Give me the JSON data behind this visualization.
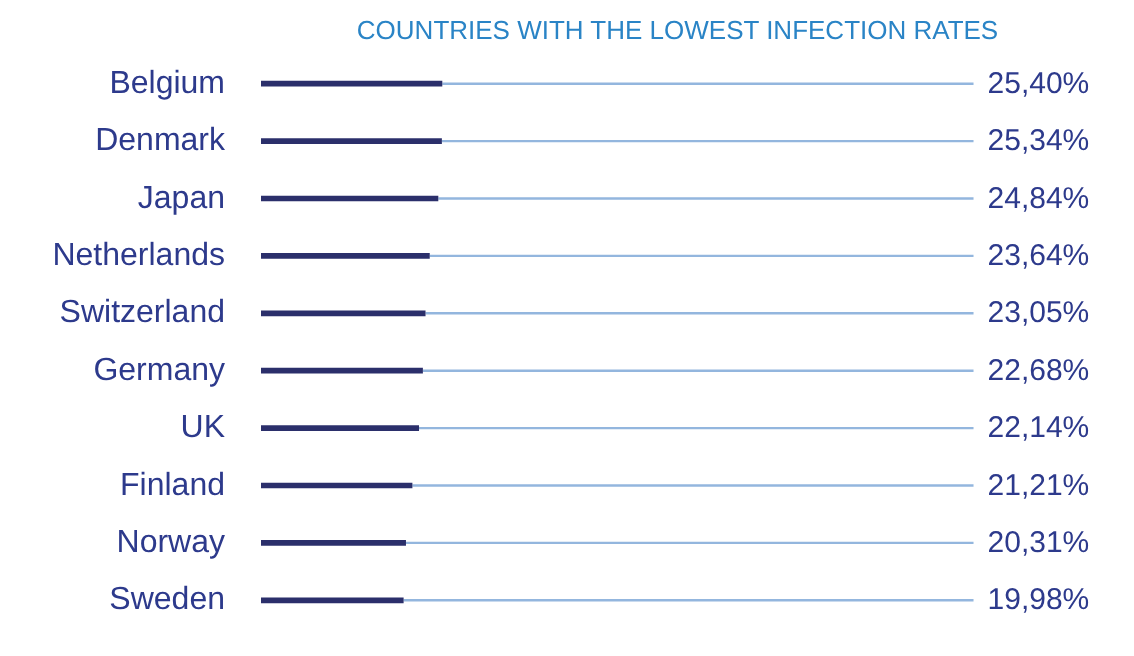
{
  "chart_data": {
    "type": "bar",
    "orientation": "horizontal",
    "title": "COUNTRIES WITH THE LOWEST INFECTION RATES",
    "categories": [
      "Belgium",
      "Denmark",
      "Japan",
      "Netherlands",
      "Switzerland",
      "Germany",
      "UK",
      "Finland",
      "Norway",
      "Sweden"
    ],
    "tick_labels": "y",
    "grid": false,
    "series": [
      {
        "color": "#2b2f6b",
        "values": [
          25.4,
          25.34,
          24.84,
          23.64,
          23.05,
          22.68,
          22.14,
          21.21,
          20.31,
          19.98
        ],
        "value_labels": [
          "25,40%",
          "25,34%",
          "24,84%",
          "23,64%",
          "23,05%",
          "22,68%",
          "22,14%",
          "21,21%",
          "20,31%",
          "19,98%"
        ]
      }
    ]
  }
}
